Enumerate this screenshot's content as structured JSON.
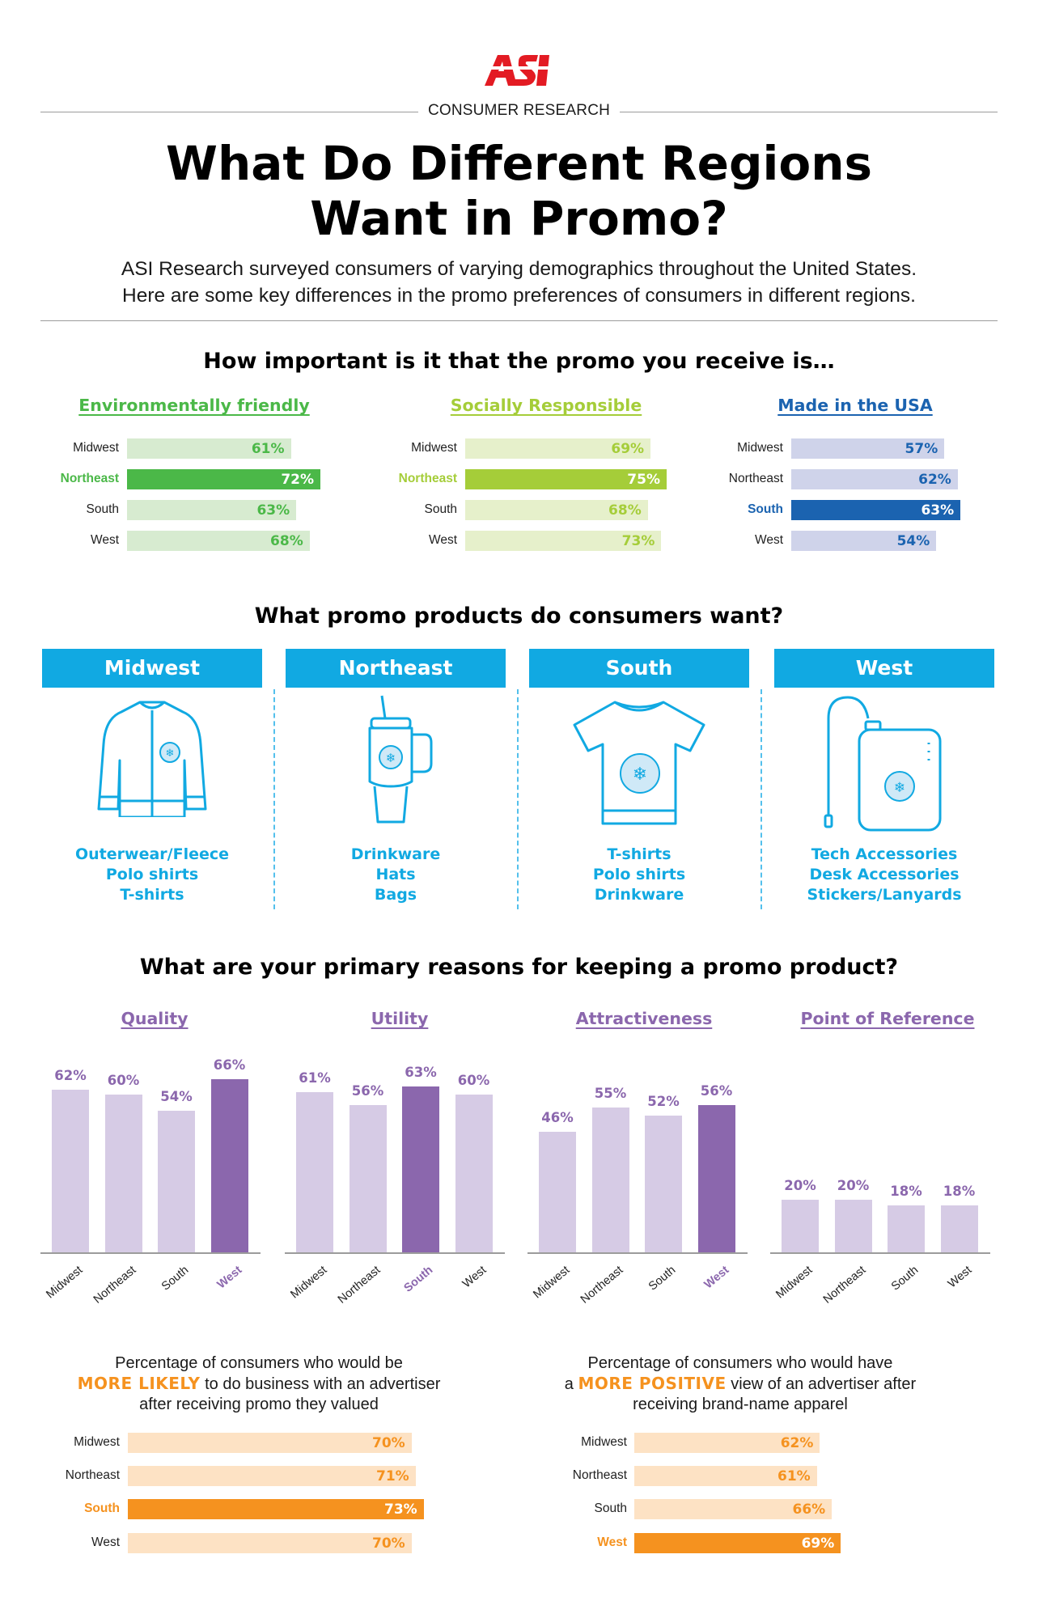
{
  "header": {
    "logo_text": "ASI",
    "kicker": "CONSUMER RESEARCH",
    "title_line1": "What Do Different Regions",
    "title_line2": "Want in Promo?",
    "intro_line1": "ASI Research surveyed consumers of varying demographics throughout the United States.",
    "intro_line2": "Here are some key differences in the promo preferences of consumers in different regions."
  },
  "colors": {
    "green_dark": "#4bb848",
    "green_light": "#d7ebd0",
    "lime_dark": "#a5cd39",
    "lime_light": "#e6f0cb",
    "blue_dark": "#1b63b0",
    "blue_light": "#cfd3ea",
    "cyan": "#11a9e2",
    "purple_dark": "#8b67ad",
    "purple_light": "#d6cbe5",
    "orange_dark": "#f5921f",
    "orange_light": "#fde2c4"
  },
  "importance": {
    "title": "How important is it that the promo you receive is…",
    "groups": [
      {
        "title": "Environmentally friendly",
        "highlight": 1,
        "color": "#4bb848",
        "light": "#d7ebd0",
        "rows": [
          {
            "label": "Midwest",
            "value": 61,
            "text": "61%"
          },
          {
            "label": "Northeast",
            "value": 72,
            "text": "72%"
          },
          {
            "label": "South",
            "value": 63,
            "text": "63%"
          },
          {
            "label": "West",
            "value": 68,
            "text": "68%"
          }
        ]
      },
      {
        "title": "Socially Responsible",
        "highlight": 1,
        "color": "#a5cd39",
        "light": "#e6f0cb",
        "rows": [
          {
            "label": "Midwest",
            "value": 69,
            "text": "69%"
          },
          {
            "label": "Northeast",
            "value": 75,
            "text": "75%"
          },
          {
            "label": "South",
            "value": 68,
            "text": "68%"
          },
          {
            "label": "West",
            "value": 73,
            "text": "73%"
          }
        ]
      },
      {
        "title": "Made in the USA",
        "highlight": 2,
        "color": "#1b63b0",
        "light": "#cfd3ea",
        "rows": [
          {
            "label": "Midwest",
            "value": 57,
            "text": "57%"
          },
          {
            "label": "Northeast",
            "value": 62,
            "text": "62%"
          },
          {
            "label": "South",
            "value": 63,
            "text": "63%"
          },
          {
            "label": "West",
            "value": 54,
            "text": "54%"
          }
        ]
      }
    ]
  },
  "products": {
    "title": "What promo products do consumers want?",
    "regions": [
      {
        "name": "Midwest",
        "icon": "jacket-icon",
        "items": [
          "Outerwear/Fleece",
          "Polo shirts",
          "T-shirts"
        ]
      },
      {
        "name": "Northeast",
        "icon": "tumbler-icon",
        "items": [
          "Drinkware",
          "Hats",
          "Bags"
        ]
      },
      {
        "name": "South",
        "icon": "tshirt-icon",
        "items": [
          "T-shirts",
          "Polo shirts",
          "Drinkware"
        ]
      },
      {
        "name": "West",
        "icon": "power-bank-icon",
        "items": [
          "Tech Accessories",
          "Desk Accessories",
          "Stickers/Lanyards"
        ]
      }
    ]
  },
  "reasons": {
    "title": "What are your primary reasons for keeping a promo product?"
  },
  "chart_data": [
    {
      "type": "bar",
      "title": "Quality",
      "categories": [
        "Midwest",
        "Northeast",
        "South",
        "West"
      ],
      "values": [
        62,
        60,
        54,
        66
      ],
      "labels": [
        "62%",
        "60%",
        "54%",
        "66%"
      ],
      "highlight": 3
    },
    {
      "type": "bar",
      "title": "Utility",
      "categories": [
        "Midwest",
        "Northeast",
        "South",
        "West"
      ],
      "values": [
        61,
        56,
        63,
        60
      ],
      "labels": [
        "61%",
        "56%",
        "63%",
        "60%"
      ],
      "highlight": 2
    },
    {
      "type": "bar",
      "title": "Attractiveness",
      "categories": [
        "Midwest",
        "Northeast",
        "South",
        "West"
      ],
      "values": [
        46,
        55,
        52,
        56
      ],
      "labels": [
        "46%",
        "55%",
        "52%",
        "56%"
      ],
      "highlight": 3
    },
    {
      "type": "bar",
      "title": "Point of Reference",
      "categories": [
        "Midwest",
        "Northeast",
        "South",
        "West"
      ],
      "values": [
        20,
        20,
        18,
        18
      ],
      "labels": [
        "20%",
        "20%",
        "18%",
        "18%"
      ],
      "highlight": -1
    }
  ],
  "likely": {
    "line1": "Percentage of consumers who would be",
    "em": "MORE LIKELY",
    "line2_rest": " to do business with an advertiser",
    "line3": "after receiving promo they valued",
    "highlight": 2,
    "rows": [
      {
        "label": "Midwest",
        "value": 70,
        "text": "70%"
      },
      {
        "label": "Northeast",
        "value": 71,
        "text": "71%"
      },
      {
        "label": "South",
        "value": 73,
        "text": "73%"
      },
      {
        "label": "West",
        "value": 70,
        "text": "70%"
      }
    ]
  },
  "positive": {
    "line1": "Percentage of consumers who would have",
    "pre": "a ",
    "em": "MORE POSITIVE",
    "line2_rest": " view of an advertiser after",
    "line3": "receiving brand-name apparel",
    "highlight": 3,
    "rows": [
      {
        "label": "Midwest",
        "value": 62,
        "text": "62%"
      },
      {
        "label": "Northeast",
        "value": 61,
        "text": "61%"
      },
      {
        "label": "South",
        "value": 66,
        "text": "66%"
      },
      {
        "label": "West",
        "value": 69,
        "text": "69%"
      }
    ]
  }
}
